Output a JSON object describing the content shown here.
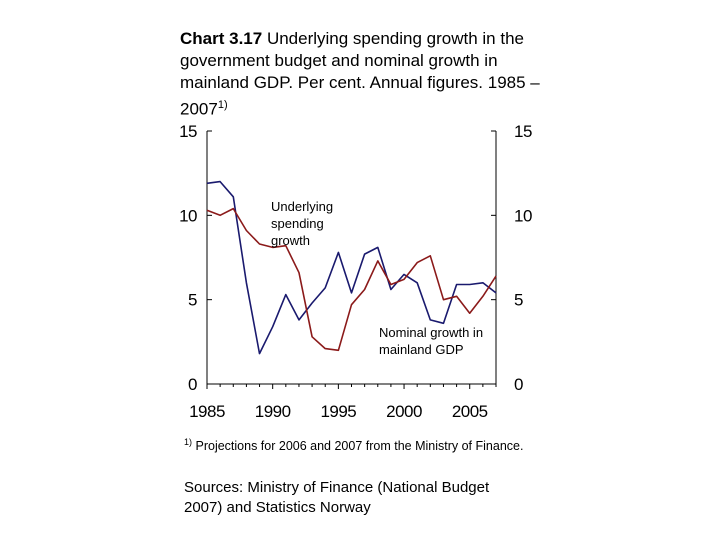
{
  "title": {
    "label": "Chart 3.17",
    "text": "Underlying spending growth in the government budget and nominal growth in mainland GDP. Per cent. Annual figures. 1985 – 2007",
    "sup": "1)"
  },
  "chart_data": {
    "type": "line",
    "x": [
      1985,
      1986,
      1987,
      1988,
      1989,
      1990,
      1991,
      1992,
      1993,
      1994,
      1995,
      1996,
      1997,
      1998,
      1999,
      2000,
      2001,
      2002,
      2003,
      2004,
      2005,
      2006,
      2007
    ],
    "series": [
      {
        "name": "Underlying spending growth",
        "color": "#1a1a6e",
        "values": [
          11.9,
          12.0,
          11.1,
          6.0,
          1.8,
          3.4,
          5.3,
          3.8,
          4.8,
          5.7,
          7.8,
          5.4,
          7.7,
          8.1,
          5.6,
          6.5,
          6.0,
          3.8,
          3.6,
          5.9,
          5.9,
          6.0,
          5.4
        ]
      },
      {
        "name": "Nominal growth in mainland GDP",
        "color": "#8b1a1a",
        "values": [
          10.3,
          10.0,
          10.4,
          9.1,
          8.3,
          8.1,
          8.2,
          6.6,
          2.8,
          2.1,
          2.0,
          4.7,
          5.6,
          7.3,
          5.9,
          6.2,
          7.2,
          7.6,
          5.0,
          5.2,
          4.2,
          5.2,
          6.4
        ]
      }
    ],
    "xticks": [
      "1985",
      "1990",
      "1995",
      "2000",
      "2005"
    ],
    "yticks_left": [
      "15",
      "10",
      "5",
      "0"
    ],
    "yticks_right": [
      "15",
      "10",
      "5",
      "0"
    ],
    "ylim": [
      0,
      15
    ],
    "xlim": [
      1985,
      2007
    ],
    "annotations": {
      "spending": [
        "Underlying",
        "spending",
        "growth"
      ],
      "gdp": [
        "Nominal growth in",
        "mainland GDP"
      ]
    }
  },
  "footnote": {
    "marker": "1)",
    "text": "Projections for 2006 and 2007 from the Ministry of Finance."
  },
  "sources": "Sources: Ministry of Finance (National Budget 2007) and Statistics Norway"
}
